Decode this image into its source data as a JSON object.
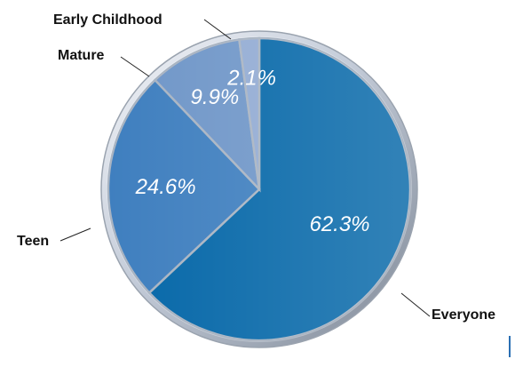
{
  "chart_data": {
    "type": "pie",
    "slices": [
      {
        "label": "Everyone",
        "value": 62.3,
        "value_label": "62.3%",
        "color": "#0567a8"
      },
      {
        "label": "Teen",
        "value": 24.6,
        "value_label": "24.6%",
        "color": "#3f7fbf"
      },
      {
        "label": "Mature",
        "value": 9.9,
        "value_label": "9.9%",
        "color": "#6f96c8"
      },
      {
        "label": "Early Childhood",
        "value": 2.1,
        "value_label": "2.1%",
        "color": "#92abd3"
      }
    ],
    "start": "12 o'clock",
    "direction": "clockwise",
    "title": "",
    "legend": "none"
  }
}
